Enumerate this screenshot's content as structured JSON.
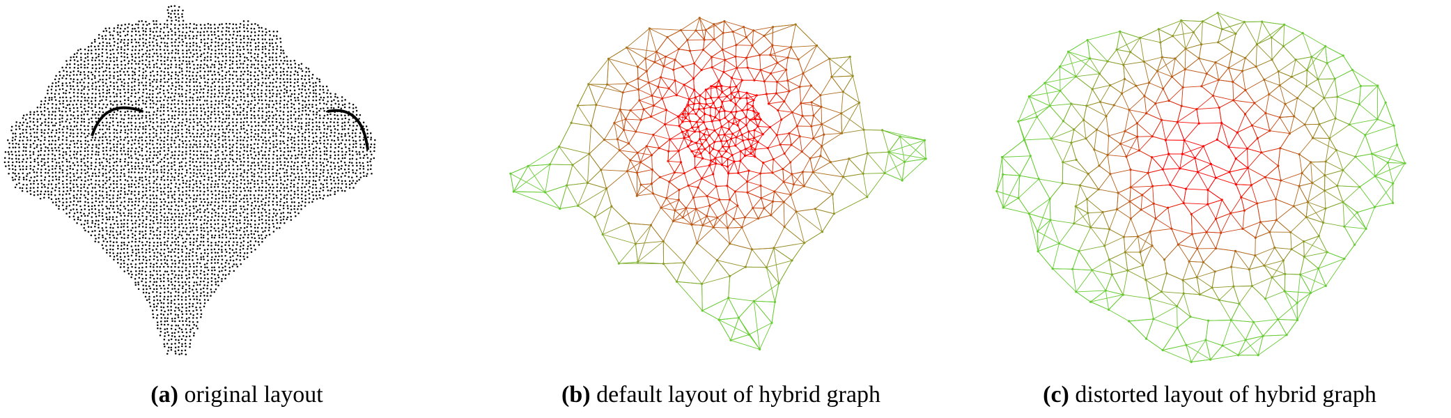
{
  "figure": {
    "panels": [
      {
        "id": "a",
        "tag": "(a)",
        "caption": "original layout",
        "style": "dots",
        "node_color": "#000000"
      },
      {
        "id": "b",
        "tag": "(b)",
        "caption": "default layout of hybrid graph",
        "style": "mesh",
        "edge_color_far": "#66cc33",
        "edge_color_near": "#ff0000",
        "focus": "dense center"
      },
      {
        "id": "c",
        "tag": "(c)",
        "caption": "distorted layout of hybrid graph",
        "style": "mesh",
        "edge_color_far": "#66cc33",
        "edge_color_near": "#ff0000",
        "focus": "magnified center"
      }
    ]
  }
}
